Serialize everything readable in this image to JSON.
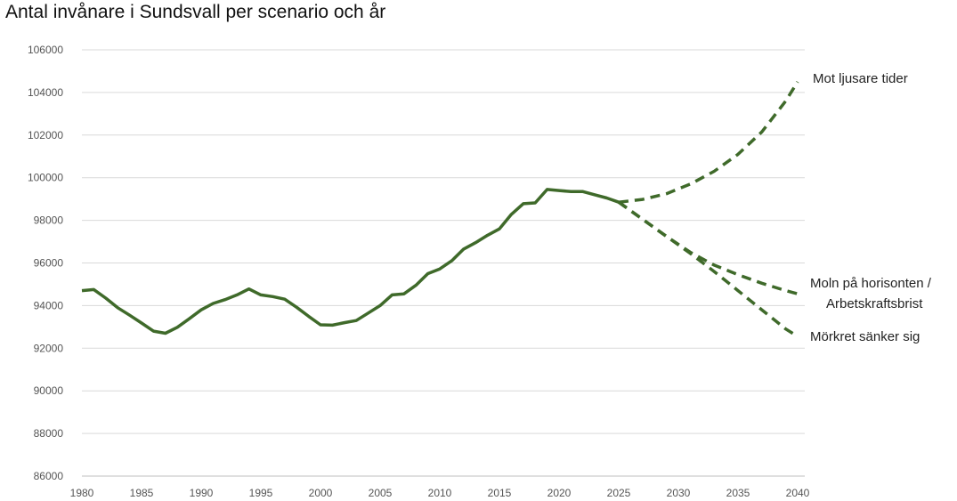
{
  "chart_data": {
    "type": "line",
    "title": "Antal invånare i Sundsvall per scenario och år",
    "xlabel": "",
    "ylabel": "",
    "xlim": [
      1980,
      2040
    ],
    "ylim": [
      86000,
      106000
    ],
    "x_ticks": [
      "1980",
      "1985",
      "1990",
      "1995",
      "2000",
      "2005",
      "2010",
      "2015",
      "2020",
      "2025",
      "2030",
      "2035",
      "2040"
    ],
    "y_ticks": [
      "86000",
      "88000",
      "90000",
      "92000",
      "94000",
      "96000",
      "98000",
      "100000",
      "102000",
      "104000",
      "106000"
    ],
    "grid": "horizontal",
    "color": "#3f6a2a",
    "series": [
      {
        "style": "solid",
        "x": [
          1980,
          1981,
          1982,
          1983,
          1984,
          1985,
          1986,
          1987,
          1988,
          1989,
          1990,
          1991,
          1992,
          1993,
          1994,
          1995,
          1996,
          1997,
          1998,
          1999,
          2000,
          2001,
          2002,
          2003,
          2004,
          2005,
          2006,
          2007,
          2008,
          2009,
          2010,
          2011,
          2012,
          2013,
          2014,
          2015,
          2016,
          2017,
          2018,
          2019,
          2020,
          2021,
          2022,
          2023,
          2024,
          2025
        ],
        "y": [
          94700,
          94750,
          94350,
          93900,
          93550,
          93180,
          92800,
          92700,
          92980,
          93380,
          93800,
          94100,
          94280,
          94500,
          94780,
          94500,
          94420,
          94300,
          93920,
          93500,
          93100,
          93080,
          93200,
          93300,
          93650,
          94000,
          94500,
          94550,
          94950,
          95500,
          95720,
          96100,
          96650,
          96950,
          97300,
          97600,
          98280,
          98780,
          98820,
          99450,
          99400,
          99350,
          99350,
          99200,
          99050,
          98850
        ]
      },
      {
        "name": "Mot ljusare tider",
        "style": "dashed",
        "x": [
          2025,
          2027,
          2029,
          2031,
          2033,
          2035,
          2037,
          2039,
          2040
        ],
        "y": [
          98850,
          98980,
          99250,
          99700,
          100300,
          101100,
          102150,
          103600,
          104500
        ]
      },
      {
        "name": "Moln på horisonten / Arbetskraftsbrist",
        "style": "dashed",
        "x": [
          2025,
          2027,
          2029,
          2031,
          2033,
          2035,
          2037,
          2039,
          2040
        ],
        "y": [
          98850,
          98050,
          97250,
          96500,
          95900,
          95450,
          95050,
          94700,
          94550
        ]
      },
      {
        "name": "Mörkret sänker sig",
        "style": "dashed",
        "x": [
          2025,
          2027,
          2029,
          2031,
          2033,
          2035,
          2037,
          2039,
          2040
        ],
        "y": [
          98850,
          98050,
          97250,
          96450,
          95600,
          94700,
          93800,
          92900,
          92550
        ]
      }
    ],
    "annotations": [
      {
        "text": "Mot ljusare tider",
        "series": 1
      },
      {
        "text": "Moln på horisonten /",
        "series": 2
      },
      {
        "text": "Arbetskraftsbrist",
        "series": 2
      },
      {
        "text": "Mörkret sänker sig",
        "series": 3
      }
    ]
  }
}
